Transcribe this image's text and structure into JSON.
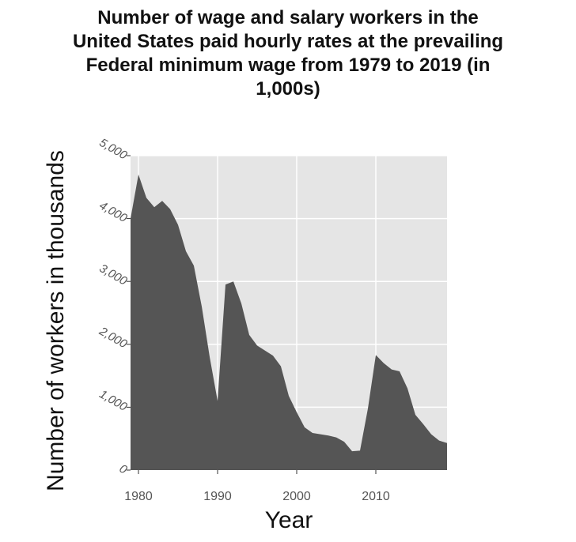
{
  "chart_data": {
    "type": "area",
    "title": "Number of wage and salary workers in the United States paid hourly rates at the prevailing Federal minimum wage from 1979 to 2019 (in 1,000s)",
    "xlabel": "Year",
    "ylabel": "Number of workers in thousands",
    "xlim": [
      1979,
      2019
    ],
    "ylim": [
      0,
      5000
    ],
    "x_ticks": [
      1980,
      1990,
      2000,
      2010
    ],
    "x_tick_labels": [
      "1980",
      "1990",
      "2000",
      "2010"
    ],
    "y_ticks": [
      0,
      1000,
      2000,
      3000,
      4000,
      5000
    ],
    "y_tick_labels": [
      "0",
      "1,000",
      "2,000",
      "3,000",
      "4,000",
      "5,000"
    ],
    "grid": true,
    "legend": "none",
    "colors": {
      "fill": "#555555",
      "panel": "#e5e5e5",
      "grid": "#ffffff"
    },
    "x": [
      1979,
      1980,
      1981,
      1982,
      1983,
      1984,
      1985,
      1986,
      1987,
      1988,
      1989,
      1990,
      1991,
      1992,
      1993,
      1994,
      1995,
      1996,
      1997,
      1998,
      1999,
      2000,
      2001,
      2002,
      2003,
      2004,
      2005,
      2006,
      2007,
      2008,
      2009,
      2010,
      2011,
      2012,
      2013,
      2014,
      2015,
      2016,
      2017,
      2018,
      2019
    ],
    "values": [
      4000,
      4700,
      4330,
      4180,
      4280,
      4150,
      3900,
      3480,
      3250,
      2600,
      1800,
      1100,
      2950,
      3000,
      2650,
      2150,
      1980,
      1900,
      1820,
      1650,
      1180,
      920,
      680,
      590,
      570,
      550,
      520,
      450,
      300,
      310,
      980,
      1830,
      1700,
      1600,
      1570,
      1300,
      880,
      730,
      570,
      470,
      430
    ]
  }
}
